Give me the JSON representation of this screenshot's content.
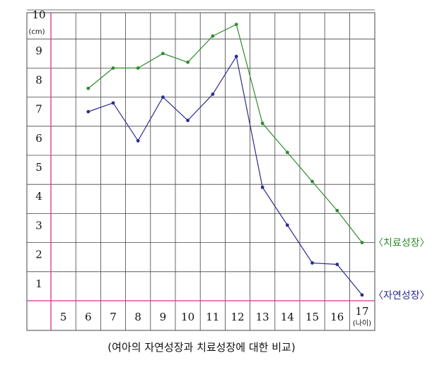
{
  "chart_data": {
    "type": "line",
    "caption": "(여아의 자연성장과 치료성장에 대한 비교)",
    "xlabel": "(나이)",
    "ylabel": "(cm)",
    "categories": [
      5,
      6,
      7,
      8,
      9,
      10,
      11,
      12,
      13,
      14,
      15,
      16,
      17
    ],
    "y_ticks": [
      1,
      2,
      3,
      4,
      5,
      6,
      7,
      8,
      9,
      10
    ],
    "ylim": [
      0,
      10
    ],
    "grid": true,
    "series": [
      {
        "name": "〈치료성장〉",
        "color": "#2e8b2e",
        "points": [
          {
            "x": 6.0,
            "y": 7.3
          },
          {
            "x": 7.0,
            "y": 8.0
          },
          {
            "x": 8.0,
            "y": 8.0
          },
          {
            "x": 9.0,
            "y": 8.5
          },
          {
            "x": 10.0,
            "y": 8.2
          },
          {
            "x": 11.0,
            "y": 9.1
          },
          {
            "x": 11.95,
            "y": 9.5
          },
          {
            "x": 13.0,
            "y": 6.1
          },
          {
            "x": 14.0,
            "y": 5.1
          },
          {
            "x": 15.0,
            "y": 4.1
          },
          {
            "x": 16.0,
            "y": 3.1
          },
          {
            "x": 17.0,
            "y": 2.0
          }
        ]
      },
      {
        "name": "〈자연성장〉",
        "color": "#2b2b8f",
        "points": [
          {
            "x": 6.0,
            "y": 6.5
          },
          {
            "x": 7.0,
            "y": 6.8
          },
          {
            "x": 8.0,
            "y": 5.5
          },
          {
            "x": 9.0,
            "y": 7.0
          },
          {
            "x": 10.0,
            "y": 6.2
          },
          {
            "x": 11.0,
            "y": 7.1
          },
          {
            "x": 11.95,
            "y": 8.4
          },
          {
            "x": 13.0,
            "y": 3.9
          },
          {
            "x": 14.0,
            "y": 2.6
          },
          {
            "x": 15.0,
            "y": 1.3
          },
          {
            "x": 16.0,
            "y": 1.25
          },
          {
            "x": 17.0,
            "y": 0.2
          }
        ]
      }
    ]
  },
  "colors": {
    "axis": "#d6338f",
    "grid": "#444444"
  }
}
